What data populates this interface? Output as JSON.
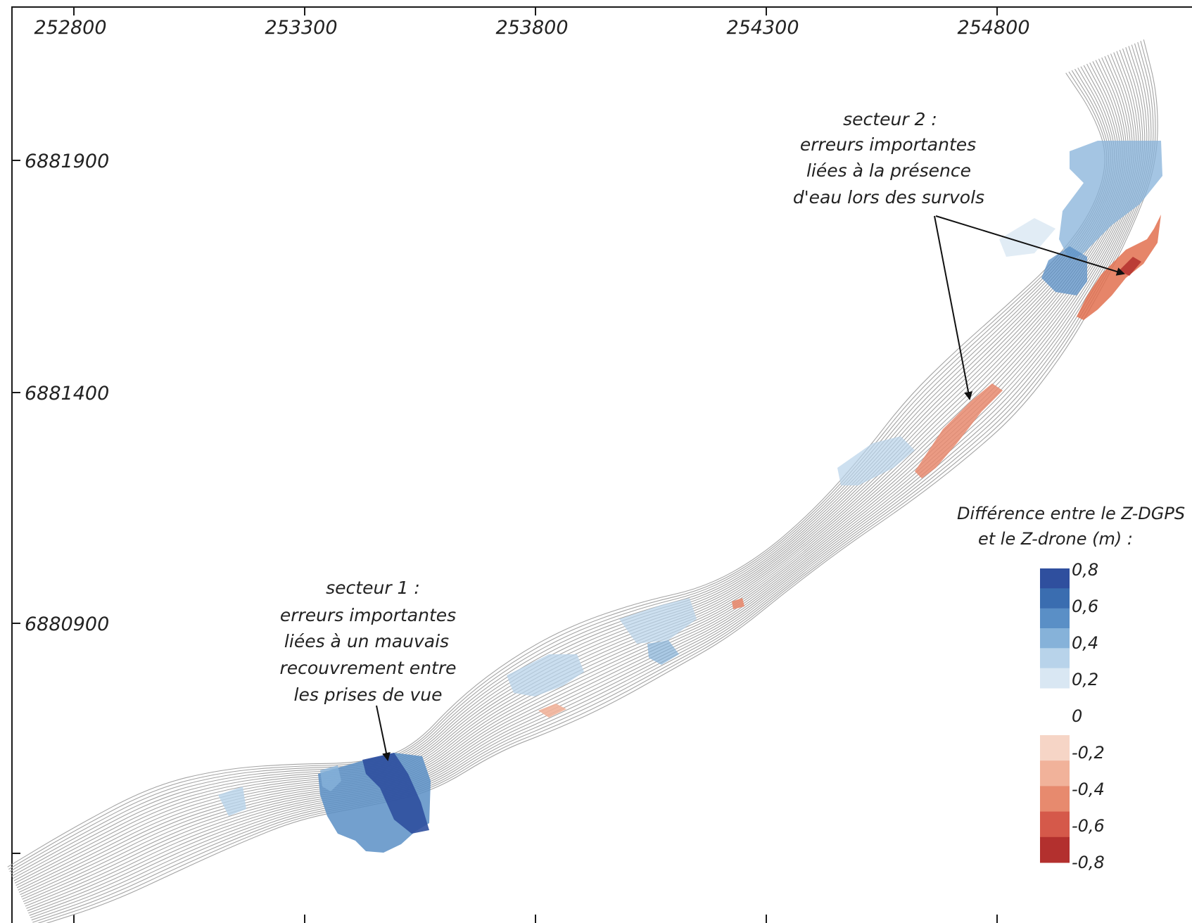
{
  "x_axis_labels": [
    "252800",
    "253300",
    "253800",
    "254300",
    "254800"
  ],
  "y_axis_labels": [
    "6881900",
    "6881400",
    "6880900"
  ],
  "annotations": {
    "sector1": [
      "secteur 1 :",
      "erreurs importantes",
      "liées à un mauvais",
      "recouvrement entre",
      "les prises de vue"
    ],
    "sector2": [
      "secteur 2 :",
      "erreurs importantes",
      "liées à la présence",
      "d'eau lors des survols"
    ]
  },
  "legend": {
    "title_line1": "Différence entre le Z-DGPS",
    "title_line2": "et le Z-drone (m) :",
    "labels": [
      "0,8",
      "0,6",
      "0,4",
      "0,2",
      "0",
      "-0,2",
      "-0,4",
      "-0,6",
      "-0,8"
    ],
    "positive_colors": [
      "#2f4f9e",
      "#3a6db0",
      "#5a8fc6",
      "#86b2d9",
      "#b8d3ea",
      "#d9e7f3"
    ],
    "negative_colors": [
      "#f6d5c6",
      "#f1b29a",
      "#e78a6e",
      "#d5594a",
      "#b3302e"
    ]
  },
  "colors": {
    "frame": "#1a1a1a",
    "contour": "#a4a4a4",
    "blue_error": "#4f8cc8",
    "red_error": "#e2704f"
  }
}
